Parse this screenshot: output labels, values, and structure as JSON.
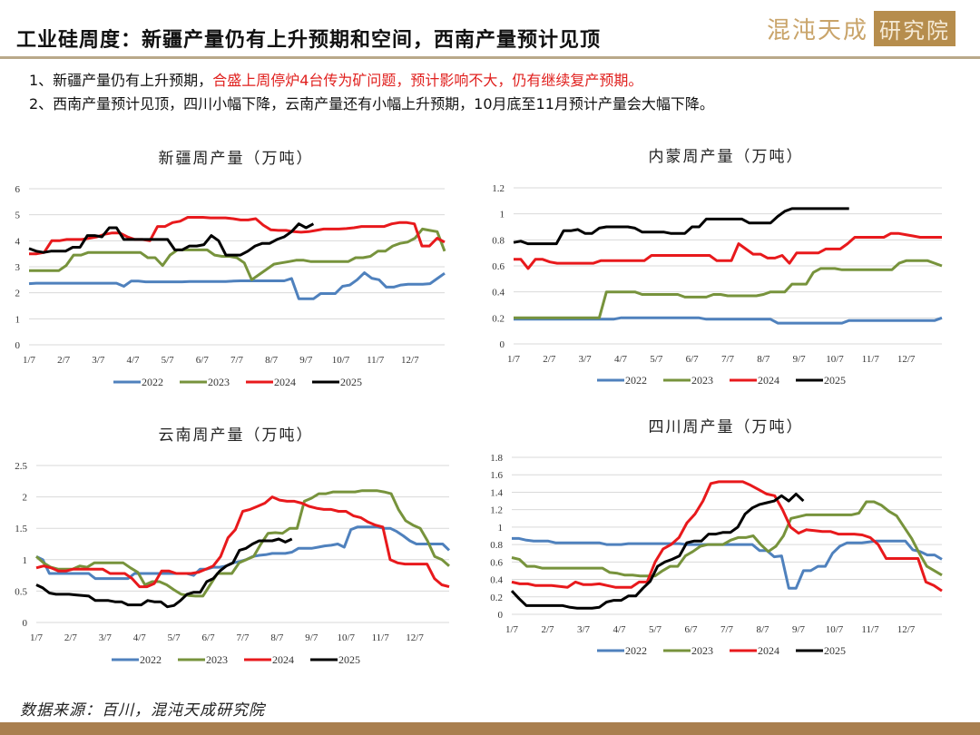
{
  "header": {
    "title": "工业硅周度：新疆产量仍有上升预期和空间，西南产量预计见顶",
    "logo_text": "混沌天成",
    "logo_box": "研究院"
  },
  "notes": {
    "line1_prefix": "1、新疆产量仍有上升预期，",
    "line1_red": "合盛上周停炉4台传为矿问题，预计影响不大，仍有继续复产预期。",
    "line2": "2、西南产量预计见顶，四川小幅下降，云南产量还有小幅上升预期，10月底至11月预计产量会大幅下降。"
  },
  "footer": {
    "source": "数据来源：百川，混沌天成研究院"
  },
  "colors": {
    "2022": "#4f81bd",
    "2023": "#77933c",
    "2024": "#e8191c",
    "2025": "#000000"
  },
  "chart_data": [
    {
      "type": "line",
      "title": "新疆周产量（万吨）",
      "categories": [
        "1/7",
        "2/7",
        "3/7",
        "4/7",
        "5/7",
        "6/7",
        "7/7",
        "8/7",
        "9/7",
        "10/7",
        "11/7",
        "12/7"
      ],
      "ylim": [
        0,
        6
      ],
      "yticks": [
        0,
        1,
        2,
        3,
        4,
        5,
        6
      ],
      "grid": true,
      "legend": "bottom",
      "series": [
        {
          "name": "2022",
          "values": [
            2.35,
            2.37,
            2.37,
            2.37,
            2.37,
            2.37,
            2.37,
            2.37,
            2.37,
            2.37,
            2.37,
            2.37,
            2.37,
            2.25,
            2.45,
            2.45,
            2.42,
            2.42,
            2.42,
            2.42,
            2.42,
            2.42,
            2.43,
            2.43,
            2.43,
            2.43,
            2.43,
            2.43,
            2.45,
            2.46,
            2.46,
            2.46,
            2.46,
            2.46,
            2.46,
            2.46,
            2.55,
            1.77,
            1.77,
            1.77,
            1.97,
            1.97,
            1.97,
            2.25,
            2.3,
            2.5,
            2.77,
            2.56,
            2.5,
            2.22,
            2.22,
            2.3,
            2.33,
            2.33,
            2.33,
            2.35,
            2.55,
            2.75
          ]
        },
        {
          "name": "2023",
          "values": [
            2.85,
            2.85,
            2.85,
            2.85,
            2.85,
            3.05,
            3.45,
            3.45,
            3.55,
            3.55,
            3.55,
            3.55,
            3.55,
            3.55,
            3.55,
            3.55,
            3.35,
            3.35,
            3.05,
            3.45,
            3.65,
            3.65,
            3.65,
            3.65,
            3.65,
            3.45,
            3.4,
            3.4,
            3.35,
            3.15,
            2.5,
            2.7,
            2.9,
            3.1,
            3.15,
            3.2,
            3.25,
            3.25,
            3.2,
            3.2,
            3.2,
            3.2,
            3.2,
            3.2,
            3.35,
            3.35,
            3.4,
            3.6,
            3.6,
            3.8,
            3.9,
            3.95,
            4.1,
            4.45,
            4.4,
            4.35,
            3.6
          ]
        },
        {
          "name": "2024",
          "values": [
            3.5,
            3.5,
            3.55,
            4.0,
            4.0,
            4.05,
            4.05,
            4.05,
            4.1,
            4.15,
            4.25,
            4.3,
            4.3,
            4.15,
            4.05,
            4.05,
            4.0,
            4.55,
            4.55,
            4.7,
            4.75,
            4.9,
            4.9,
            4.9,
            4.88,
            4.88,
            4.88,
            4.85,
            4.8,
            4.8,
            4.85,
            4.6,
            4.42,
            4.4,
            4.4,
            4.35,
            4.33,
            4.35,
            4.4,
            4.45,
            4.45,
            4.45,
            4.47,
            4.5,
            4.55,
            4.55,
            4.55,
            4.55,
            4.65,
            4.7,
            4.7,
            4.65,
            3.8,
            3.8,
            4.1,
            3.95
          ]
        },
        {
          "name": "2025",
          "values": [
            3.7,
            3.6,
            3.55,
            3.6,
            3.6,
            3.6,
            3.75,
            3.75,
            4.2,
            4.2,
            4.15,
            4.5,
            4.5,
            4.05,
            4.05,
            4.05,
            4.05,
            4.05,
            4.05,
            4.05,
            3.65,
            3.65,
            3.8,
            3.8,
            3.85,
            4.2,
            4.0,
            3.45,
            3.45,
            3.45,
            3.6,
            3.8,
            3.9,
            3.9,
            4.05,
            4.15,
            4.35,
            4.65,
            4.5,
            4.65
          ]
        }
      ]
    },
    {
      "type": "line",
      "title": "内蒙周产量（万吨）",
      "categories": [
        "1/7",
        "2/7",
        "3/7",
        "4/7",
        "5/7",
        "6/7",
        "7/7",
        "8/7",
        "9/7",
        "10/7",
        "11/7",
        "12/7"
      ],
      "ylim": [
        0,
        1.2
      ],
      "yticks": [
        0,
        0.2,
        0.4,
        0.6,
        0.8,
        1,
        1.2
      ],
      "grid": true,
      "legend": "bottom",
      "series": [
        {
          "name": "2022",
          "values": [
            0.19,
            0.19,
            0.19,
            0.19,
            0.19,
            0.19,
            0.19,
            0.19,
            0.19,
            0.19,
            0.19,
            0.19,
            0.19,
            0.19,
            0.19,
            0.2,
            0.2,
            0.2,
            0.2,
            0.2,
            0.2,
            0.2,
            0.2,
            0.2,
            0.2,
            0.2,
            0.2,
            0.19,
            0.19,
            0.19,
            0.19,
            0.19,
            0.19,
            0.19,
            0.19,
            0.19,
            0.19,
            0.16,
            0.16,
            0.16,
            0.16,
            0.16,
            0.16,
            0.16,
            0.16,
            0.16,
            0.16,
            0.18,
            0.18,
            0.18,
            0.18,
            0.18,
            0.18,
            0.18,
            0.18,
            0.18,
            0.18,
            0.18,
            0.18,
            0.18,
            0.2
          ]
        },
        {
          "name": "2023",
          "values": [
            0.2,
            0.2,
            0.2,
            0.2,
            0.2,
            0.2,
            0.2,
            0.2,
            0.2,
            0.2,
            0.2,
            0.2,
            0.2,
            0.4,
            0.4,
            0.4,
            0.4,
            0.4,
            0.38,
            0.38,
            0.38,
            0.38,
            0.38,
            0.38,
            0.36,
            0.36,
            0.36,
            0.36,
            0.38,
            0.38,
            0.37,
            0.37,
            0.37,
            0.37,
            0.37,
            0.38,
            0.4,
            0.4,
            0.4,
            0.46,
            0.46,
            0.46,
            0.55,
            0.58,
            0.58,
            0.58,
            0.57,
            0.57,
            0.57,
            0.57,
            0.57,
            0.57,
            0.57,
            0.57,
            0.62,
            0.64,
            0.64,
            0.64,
            0.64,
            0.62,
            0.6
          ]
        },
        {
          "name": "2024",
          "values": [
            0.65,
            0.65,
            0.58,
            0.65,
            0.65,
            0.63,
            0.62,
            0.62,
            0.62,
            0.62,
            0.62,
            0.62,
            0.64,
            0.64,
            0.64,
            0.64,
            0.64,
            0.64,
            0.64,
            0.68,
            0.68,
            0.68,
            0.68,
            0.68,
            0.68,
            0.68,
            0.68,
            0.68,
            0.64,
            0.64,
            0.64,
            0.77,
            0.73,
            0.69,
            0.69,
            0.66,
            0.66,
            0.68,
            0.62,
            0.7,
            0.7,
            0.7,
            0.7,
            0.73,
            0.73,
            0.73,
            0.77,
            0.82,
            0.82,
            0.82,
            0.82,
            0.82,
            0.85,
            0.85,
            0.84,
            0.83,
            0.82,
            0.82,
            0.82,
            0.82
          ]
        },
        {
          "name": "2025",
          "values": [
            0.78,
            0.79,
            0.77,
            0.77,
            0.77,
            0.77,
            0.77,
            0.87,
            0.87,
            0.88,
            0.85,
            0.85,
            0.89,
            0.9,
            0.9,
            0.9,
            0.9,
            0.89,
            0.86,
            0.86,
            0.86,
            0.86,
            0.85,
            0.85,
            0.85,
            0.9,
            0.9,
            0.96,
            0.96,
            0.96,
            0.96,
            0.96,
            0.96,
            0.93,
            0.93,
            0.93,
            0.93,
            0.98,
            1.02,
            1.04,
            1.04,
            1.04,
            1.04,
            1.04,
            1.04,
            1.04,
            1.04,
            1.04
          ]
        }
      ]
    },
    {
      "type": "line",
      "title": "云南周产量（万吨）",
      "categories": [
        "1/7",
        "2/7",
        "3/7",
        "4/7",
        "5/7",
        "6/7",
        "7/7",
        "8/7",
        "9/7",
        "10/7",
        "11/7",
        "12/7"
      ],
      "ylim": [
        0,
        2.5
      ],
      "yticks": [
        0,
        0.5,
        1,
        1.5,
        2,
        2.5
      ],
      "grid": true,
      "legend": "bottom",
      "series": [
        {
          "name": "2022",
          "values": [
            1.05,
            1.0,
            0.78,
            0.78,
            0.78,
            0.78,
            0.78,
            0.78,
            0.78,
            0.7,
            0.7,
            0.7,
            0.7,
            0.7,
            0.7,
            0.78,
            0.78,
            0.78,
            0.78,
            0.78,
            0.78,
            0.78,
            0.78,
            0.78,
            0.75,
            0.85,
            0.85,
            0.88,
            0.88,
            0.9,
            0.95,
            0.97,
            1.0,
            1.05,
            1.07,
            1.08,
            1.1,
            1.1,
            1.1,
            1.12,
            1.18,
            1.18,
            1.18,
            1.2,
            1.22,
            1.23,
            1.25,
            1.2,
            1.48,
            1.52,
            1.52,
            1.52,
            1.52,
            1.5,
            1.5,
            1.45,
            1.38,
            1.3,
            1.25,
            1.25,
            1.25,
            1.25,
            1.25,
            1.15
          ]
        },
        {
          "name": "2023",
          "values": [
            1.05,
            0.95,
            0.88,
            0.85,
            0.85,
            0.85,
            0.9,
            0.88,
            0.95,
            0.95,
            0.95,
            0.95,
            0.95,
            0.87,
            0.8,
            0.6,
            0.65,
            0.65,
            0.6,
            0.52,
            0.45,
            0.43,
            0.42,
            0.42,
            0.6,
            0.78,
            0.78,
            0.78,
            0.95,
            1.0,
            1.05,
            1.25,
            1.42,
            1.43,
            1.42,
            1.5,
            1.5,
            1.93,
            1.98,
            2.05,
            2.05,
            2.08,
            2.08,
            2.08,
            2.08,
            2.1,
            2.1,
            2.1,
            2.08,
            2.05,
            1.8,
            1.62,
            1.55,
            1.5,
            1.3,
            1.05,
            1.0,
            0.9
          ]
        },
        {
          "name": "2024",
          "values": [
            0.87,
            0.9,
            0.87,
            0.82,
            0.82,
            0.85,
            0.85,
            0.85,
            0.85,
            0.85,
            0.78,
            0.78,
            0.78,
            0.7,
            0.57,
            0.57,
            0.62,
            0.82,
            0.82,
            0.78,
            0.78,
            0.78,
            0.8,
            0.85,
            0.9,
            1.05,
            1.35,
            1.48,
            1.77,
            1.8,
            1.85,
            1.9,
            2.0,
            1.95,
            1.93,
            1.93,
            1.9,
            1.85,
            1.82,
            1.8,
            1.8,
            1.77,
            1.77,
            1.7,
            1.67,
            1.6,
            1.55,
            1.52,
            1.0,
            0.95,
            0.93,
            0.93,
            0.93,
            0.93,
            0.7,
            0.6,
            0.57
          ]
        },
        {
          "name": "2025",
          "values": [
            0.6,
            0.55,
            0.47,
            0.45,
            0.45,
            0.45,
            0.44,
            0.43,
            0.42,
            0.35,
            0.35,
            0.35,
            0.33,
            0.33,
            0.28,
            0.28,
            0.28,
            0.35,
            0.33,
            0.33,
            0.25,
            0.27,
            0.35,
            0.45,
            0.48,
            0.48,
            0.65,
            0.7,
            0.82,
            0.9,
            0.95,
            1.15,
            1.18,
            1.25,
            1.3,
            1.3,
            1.3,
            1.33,
            1.28,
            1.33
          ]
        }
      ]
    },
    {
      "type": "line",
      "title": "四川周产量（万吨）",
      "categories": [
        "1/7",
        "2/7",
        "3/7",
        "4/7",
        "5/7",
        "6/7",
        "7/7",
        "8/7",
        "9/7",
        "10/7",
        "11/7",
        "12/7"
      ],
      "ylim": [
        0,
        1.8
      ],
      "yticks": [
        0,
        0.2,
        0.4,
        0.6,
        0.8,
        1,
        1.2,
        1.4,
        1.6,
        1.8
      ],
      "grid": true,
      "legend": "bottom",
      "series": [
        {
          "name": "2022",
          "values": [
            0.87,
            0.87,
            0.85,
            0.84,
            0.84,
            0.84,
            0.82,
            0.82,
            0.82,
            0.82,
            0.82,
            0.82,
            0.82,
            0.8,
            0.8,
            0.8,
            0.81,
            0.81,
            0.81,
            0.81,
            0.81,
            0.81,
            0.81,
            0.81,
            0.8,
            0.8,
            0.8,
            0.8,
            0.8,
            0.8,
            0.8,
            0.8,
            0.8,
            0.8,
            0.73,
            0.73,
            0.66,
            0.67,
            0.3,
            0.3,
            0.5,
            0.5,
            0.55,
            0.55,
            0.7,
            0.78,
            0.82,
            0.82,
            0.82,
            0.83,
            0.84,
            0.84,
            0.84,
            0.84,
            0.84,
            0.74,
            0.72,
            0.68,
            0.68,
            0.63
          ]
        },
        {
          "name": "2023",
          "values": [
            0.65,
            0.63,
            0.55,
            0.55,
            0.53,
            0.53,
            0.53,
            0.53,
            0.53,
            0.53,
            0.53,
            0.53,
            0.53,
            0.48,
            0.47,
            0.45,
            0.45,
            0.44,
            0.44,
            0.44,
            0.5,
            0.55,
            0.55,
            0.67,
            0.72,
            0.78,
            0.8,
            0.8,
            0.8,
            0.85,
            0.88,
            0.88,
            0.9,
            0.8,
            0.72,
            0.78,
            0.9,
            1.1,
            1.12,
            1.14,
            1.14,
            1.14,
            1.14,
            1.14,
            1.14,
            1.14,
            1.16,
            1.29,
            1.29,
            1.25,
            1.18,
            1.13,
            1.0,
            0.87,
            0.7,
            0.55,
            0.5,
            0.45
          ]
        },
        {
          "name": "2024",
          "values": [
            0.37,
            0.35,
            0.35,
            0.33,
            0.33,
            0.33,
            0.32,
            0.31,
            0.37,
            0.34,
            0.34,
            0.35,
            0.33,
            0.31,
            0.31,
            0.31,
            0.37,
            0.37,
            0.6,
            0.75,
            0.8,
            0.88,
            1.05,
            1.15,
            1.3,
            1.5,
            1.52,
            1.52,
            1.52,
            1.52,
            1.48,
            1.43,
            1.38,
            1.36,
            1.2,
            1.0,
            0.93,
            0.97,
            0.96,
            0.95,
            0.95,
            0.92,
            0.92,
            0.92,
            0.91,
            0.88,
            0.8,
            0.64,
            0.64,
            0.64,
            0.64,
            0.64,
            0.37,
            0.33,
            0.27
          ]
        },
        {
          "name": "2025",
          "values": [
            0.27,
            0.18,
            0.1,
            0.1,
            0.1,
            0.1,
            0.1,
            0.1,
            0.08,
            0.07,
            0.07,
            0.07,
            0.08,
            0.14,
            0.16,
            0.16,
            0.21,
            0.21,
            0.3,
            0.38,
            0.55,
            0.6,
            0.63,
            0.67,
            0.82,
            0.84,
            0.84,
            0.92,
            0.92,
            0.94,
            0.94,
            1.0,
            1.15,
            1.22,
            1.26,
            1.28,
            1.3,
            1.36,
            1.3,
            1.38,
            1.3
          ]
        }
      ]
    }
  ]
}
